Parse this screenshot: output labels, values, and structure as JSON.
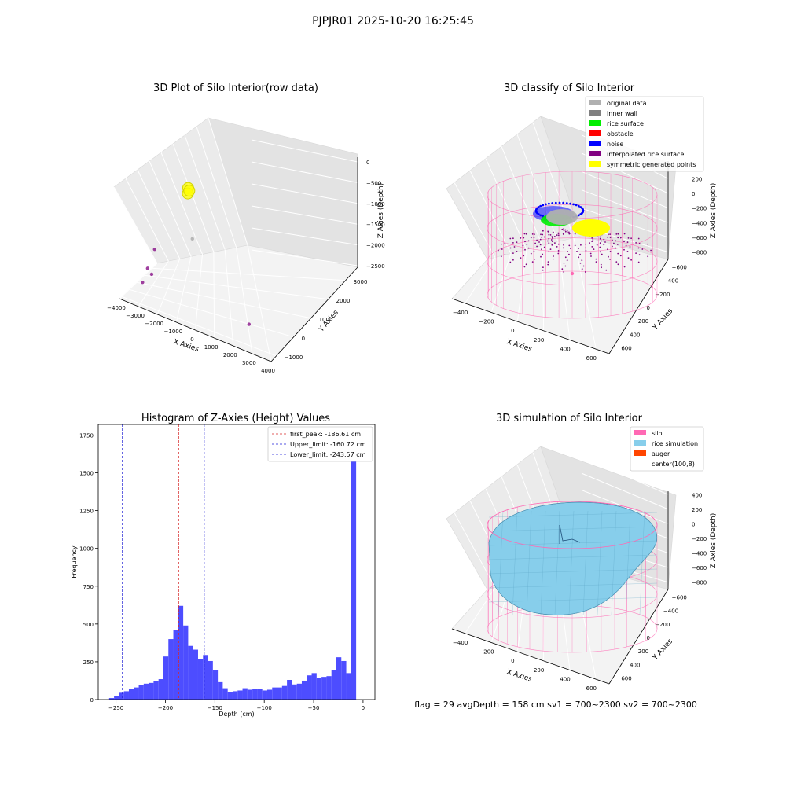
{
  "suptitle": "PJPJR01 2025-10-20 16:25:45",
  "colors": {
    "hist_bar": "#4d4dff",
    "first_peak": "#d62728",
    "limits": "#1f1fd6",
    "silo": "#ff69b4",
    "rice_simulation": "#87ceeb",
    "auger": "#ff4500",
    "original_data": "#b0b0b0",
    "inner_wall": "#808080",
    "rice_surface": "#00ee00",
    "obstacle": "#ff0000",
    "noise": "#0000ff",
    "interpolated": "#800080",
    "symmetric": "#ffff00"
  },
  "chart_data": [
    {
      "type": "scatter",
      "title": "3D Plot of Silo Interior(row data)",
      "xlabel": "X Axies",
      "ylabel": "Y Axies",
      "zlabel": "Z Axies (Depth)",
      "xticks": [
        "−4000",
        "−3000",
        "−2000",
        "−1000",
        "0",
        "1000",
        "2000",
        "3000",
        "4000"
      ],
      "yticks": [
        "−1000",
        "0",
        "1000",
        "2000",
        "3000"
      ],
      "zticks": [
        "−2500",
        "−2000",
        "−1500",
        "−1000",
        "−500",
        "0"
      ],
      "points": [
        {
          "x": -1000,
          "y": 2500,
          "z": -600,
          "series": "symmetric"
        },
        {
          "x": -1000,
          "y": 2400,
          "z": -700,
          "series": "symmetric"
        },
        {
          "x": -900,
          "y": 2450,
          "z": -650,
          "series": "symmetric"
        },
        {
          "x": -500,
          "y": 1500,
          "z": -1500,
          "series": "original_data"
        },
        {
          "x": -3000,
          "y": 1200,
          "z": -1800,
          "series": "interpolated"
        },
        {
          "x": -3300,
          "y": 800,
          "z": -2200,
          "series": "interpolated"
        },
        {
          "x": -3000,
          "y": 700,
          "z": -2300,
          "series": "interpolated"
        },
        {
          "x": -3500,
          "y": 500,
          "z": -2500,
          "series": "interpolated"
        },
        {
          "x": 3000,
          "y": -500,
          "z": -2400,
          "series": "interpolated"
        }
      ]
    },
    {
      "type": "scatter",
      "title": "3D classify of Silo Interior",
      "xlabel": "X Axies",
      "ylabel": "Y Axies",
      "zlabel": "Z Axies (Depth)",
      "xticks": [
        "−400",
        "−200",
        "0",
        "200",
        "400",
        "600"
      ],
      "yticks": [
        "−600",
        "−400",
        "−200",
        "0",
        "200",
        "400",
        "600"
      ],
      "zticks": [
        "−800",
        "−600",
        "−400",
        "−200",
        "0",
        "200"
      ],
      "legend": [
        {
          "label": "original data",
          "color_key": "original_data"
        },
        {
          "label": "inner wall",
          "color_key": "inner_wall"
        },
        {
          "label": "rice surface",
          "color_key": "rice_surface"
        },
        {
          "label": "obstacle",
          "color_key": "obstacle"
        },
        {
          "label": "noise",
          "color_key": "noise"
        },
        {
          "label": "interpolated rice surface",
          "color_key": "interpolated"
        },
        {
          "label": "symmetric generated points",
          "color_key": "symmetric"
        }
      ]
    },
    {
      "type": "bar",
      "title": "Histogram of Z-Axies (Height) Values",
      "xlabel": "Depth (cm)",
      "ylabel": "Frequency",
      "xlim": [
        -268,
        12
      ],
      "ylim": [
        0,
        1820
      ],
      "xticks": [
        -250,
        -200,
        -150,
        -100,
        -50,
        0
      ],
      "xtick_labels": [
        "−250",
        "−200",
        "−150",
        "−100",
        "−50",
        "0"
      ],
      "yticks": [
        0,
        250,
        500,
        750,
        1000,
        1250,
        1500,
        1750
      ],
      "yticks_labels": [
        "0",
        "250",
        "500",
        "750",
        "1000",
        "1250",
        "1500",
        "1750"
      ],
      "bin_start": -257,
      "bin_width": 5,
      "values": [
        10,
        25,
        45,
        55,
        70,
        80,
        95,
        105,
        110,
        120,
        135,
        285,
        400,
        460,
        620,
        490,
        355,
        330,
        270,
        295,
        255,
        195,
        115,
        75,
        50,
        55,
        60,
        75,
        65,
        70,
        70,
        60,
        65,
        80,
        80,
        90,
        130,
        100,
        105,
        125,
        160,
        175,
        145,
        150,
        155,
        195,
        280,
        255,
        175,
        1700
      ],
      "lines": [
        {
          "label": "first_peak: -186.61 cm",
          "value": -186.61,
          "color_key": "first_peak"
        },
        {
          "label": "Upper_limit: -160.72 cm",
          "value": -160.72,
          "color_key": "limits"
        },
        {
          "label": "Lower_limit: -243.57 cm",
          "value": -243.57,
          "color_key": "limits"
        }
      ]
    },
    {
      "type": "scatter",
      "title": "3D simulation of Silo Interior",
      "xlabel": "X Axies",
      "ylabel": "Y Axies",
      "zlabel": "Z Axies (Depth)",
      "xticks": [
        "−400",
        "−200",
        "0",
        "200",
        "400",
        "600"
      ],
      "yticks": [
        "−600",
        "−400",
        "−200",
        "0",
        "200",
        "400",
        "600"
      ],
      "zticks": [
        "−800",
        "−600",
        "−400",
        "−200",
        "0",
        "200",
        "400"
      ],
      "legend": [
        {
          "label": "silo",
          "color_key": "silo"
        },
        {
          "label": "rice simulation",
          "color_key": "rice_simulation"
        },
        {
          "label": "auger",
          "color_key": "auger"
        },
        {
          "label": "center(100,8)",
          "color_key": ""
        }
      ],
      "footer": "flag = 29  avgDepth = 158 cm  sv1 = 700~2300  sv2 = 700~2300"
    }
  ]
}
